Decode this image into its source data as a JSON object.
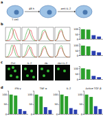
{
  "panel_labels": [
    "a",
    "b",
    "c",
    "d"
  ],
  "schematic": {
    "labels": [
      "T cell",
      "48 h",
      "anti-IL-2"
    ]
  },
  "images": {
    "labels": [
      "Ctrl",
      "IL-2",
      "Ab",
      "Ab+IL-2"
    ]
  },
  "chart_data": [
    {
      "type": "line",
      "tick_labels": false,
      "x": [
        0,
        1,
        2,
        3,
        4,
        5,
        6,
        7
      ],
      "xlim": [
        0,
        7
      ],
      "ylim": [
        0,
        100
      ],
      "series": [
        {
          "color": "#2ca02c",
          "values": [
            2,
            10,
            60,
            95,
            40,
            8,
            2,
            0
          ]
        },
        {
          "color": "#d62728",
          "values": [
            0,
            2,
            8,
            30,
            85,
            50,
            10,
            2
          ]
        }
      ]
    },
    {
      "type": "line",
      "tick_labels": false,
      "x": [
        0,
        1,
        2,
        3,
        4,
        5,
        6,
        7
      ],
      "xlim": [
        0,
        7
      ],
      "ylim": [
        0,
        100
      ],
      "series": [
        {
          "color": "#2ca02c",
          "values": [
            1,
            8,
            55,
            90,
            45,
            10,
            2,
            0
          ]
        },
        {
          "color": "#d62728",
          "values": [
            0,
            3,
            15,
            45,
            80,
            35,
            6,
            1
          ]
        }
      ]
    },
    {
      "type": "line",
      "tick_labels": false,
      "x": [
        0,
        1,
        2,
        3,
        4,
        5,
        6,
        7
      ],
      "xlim": [
        0,
        7
      ],
      "ylim": [
        0,
        100
      ],
      "series": [
        {
          "color": "#2ca02c",
          "values": [
            3,
            20,
            75,
            80,
            30,
            6,
            1,
            0
          ]
        },
        {
          "color": "#d62728",
          "values": [
            1,
            10,
            50,
            70,
            40,
            10,
            2,
            0
          ]
        }
      ]
    },
    {
      "type": "line",
      "tick_labels": false,
      "x": [
        0,
        1,
        2,
        3,
        4,
        5,
        6,
        7
      ],
      "xlim": [
        0,
        7
      ],
      "ylim": [
        0,
        100
      ],
      "series": [
        {
          "color": "#2ca02c",
          "values": [
            2,
            15,
            70,
            85,
            35,
            7,
            1,
            0
          ]
        },
        {
          "color": "#d62728",
          "values": [
            1,
            12,
            55,
            75,
            35,
            8,
            2,
            0
          ]
        }
      ]
    },
    {
      "type": "line",
      "tick_labels": false,
      "x": [
        0,
        1,
        2,
        3,
        4,
        5,
        6,
        7
      ],
      "xlim": [
        0,
        7
      ],
      "ylim": [
        0,
        100
      ],
      "series": [
        {
          "color": "#2ca02c",
          "values": [
            1,
            6,
            40,
            90,
            55,
            12,
            3,
            0
          ]
        },
        {
          "color": "#d62728",
          "values": [
            0,
            2,
            10,
            35,
            90,
            45,
            8,
            1
          ]
        }
      ]
    },
    {
      "type": "line",
      "tick_labels": false,
      "x": [
        0,
        1,
        2,
        3,
        4,
        5,
        6,
        7
      ],
      "xlim": [
        0,
        7
      ],
      "ylim": [
        0,
        100
      ],
      "series": [
        {
          "color": "#2ca02c",
          "values": [
            1,
            7,
            45,
            88,
            50,
            10,
            2,
            0
          ]
        },
        {
          "color": "#d62728",
          "values": [
            0,
            4,
            20,
            55,
            75,
            30,
            5,
            1
          ]
        }
      ]
    },
    {
      "type": "line",
      "tick_labels": false,
      "x": [
        0,
        1,
        2,
        3,
        4,
        5,
        6,
        7
      ],
      "xlim": [
        0,
        7
      ],
      "ylim": [
        0,
        100
      ],
      "series": [
        {
          "color": "#2ca02c",
          "values": [
            2,
            18,
            72,
            82,
            32,
            6,
            1,
            0
          ]
        },
        {
          "color": "#d62728",
          "values": [
            1,
            12,
            52,
            72,
            38,
            9,
            2,
            0
          ]
        }
      ]
    },
    {
      "type": "line",
      "tick_labels": false,
      "x": [
        0,
        1,
        2,
        3,
        4,
        5,
        6,
        7
      ],
      "xlim": [
        0,
        7
      ],
      "ylim": [
        0,
        100
      ],
      "series": [
        {
          "color": "#2ca02c",
          "values": [
            2,
            16,
            68,
            86,
            36,
            7,
            1,
            0
          ]
        },
        {
          "color": "#d62728",
          "values": [
            1,
            14,
            58,
            70,
            34,
            8,
            2,
            0
          ]
        }
      ]
    },
    {
      "type": "bar",
      "tick_labels": "y",
      "categories": [
        null,
        null,
        null,
        null
      ],
      "values": [
        100,
        96,
        38,
        24
      ],
      "colors": [
        "#2ca02c",
        "#2ca02c",
        "#2a3fb0",
        "#2a3fb0"
      ],
      "ylim": [
        0,
        120
      ],
      "yticks": [
        0,
        50,
        100
      ]
    },
    {
      "type": "bar",
      "tick_labels": "y",
      "categories": [
        null,
        null,
        null,
        null
      ],
      "values": [
        100,
        92,
        45,
        30
      ],
      "colors": [
        "#2ca02c",
        "#2ca02c",
        "#2a3fb0",
        "#2a3fb0"
      ],
      "ylim": [
        0,
        120
      ],
      "yticks": [
        0,
        50,
        100
      ]
    },
    {
      "type": "bar",
      "tick_labels": "y",
      "categories": [
        null,
        null,
        null,
        null
      ],
      "values": [
        100,
        90,
        30,
        18
      ],
      "colors": [
        "#2ca02c",
        "#2ca02c",
        "#2a3fb0",
        "#2a3fb0"
      ],
      "ylim": [
        0,
        120
      ],
      "yticks": [
        0,
        50,
        100
      ]
    },
    {
      "type": "bar",
      "title": "IFN-γ",
      "tick_labels": "y",
      "categories": [
        null,
        null,
        null,
        null
      ],
      "values": [
        100,
        95,
        25,
        15
      ],
      "colors": [
        "#2ca02c",
        "#2ca02c",
        "#2a3fb0",
        "#2a3fb0"
      ],
      "ylim": [
        0,
        120
      ],
      "yticks": [
        0,
        50,
        100
      ]
    },
    {
      "type": "bar",
      "title": "TNF-α",
      "tick_labels": "y",
      "categories": [
        null,
        null,
        null,
        null
      ],
      "values": [
        100,
        90,
        35,
        20
      ],
      "colors": [
        "#2ca02c",
        "#2ca02c",
        "#2a3fb0",
        "#2a3fb0"
      ],
      "ylim": [
        0,
        120
      ],
      "yticks": [
        0,
        50,
        100
      ]
    },
    {
      "type": "bar",
      "title": "IL-2",
      "tick_labels": "y",
      "categories": [
        null,
        null,
        null,
        null
      ],
      "values": [
        100,
        92,
        30,
        22
      ],
      "colors": [
        "#2ca02c",
        "#2ca02c",
        "#2a3fb0",
        "#2a3fb0"
      ],
      "ylim": [
        0,
        120
      ],
      "yticks": [
        0,
        50,
        100
      ]
    },
    {
      "type": "bar",
      "title": "Active TGF-β",
      "tick_labels": "y",
      "categories": [
        null,
        null,
        null,
        null
      ],
      "values": [
        100,
        88,
        40,
        25
      ],
      "colors": [
        "#2ca02c",
        "#2ca02c",
        "#2a3fb0",
        "#2a3fb0"
      ],
      "ylim": [
        0,
        120
      ],
      "yticks": [
        0,
        50,
        100
      ]
    }
  ]
}
